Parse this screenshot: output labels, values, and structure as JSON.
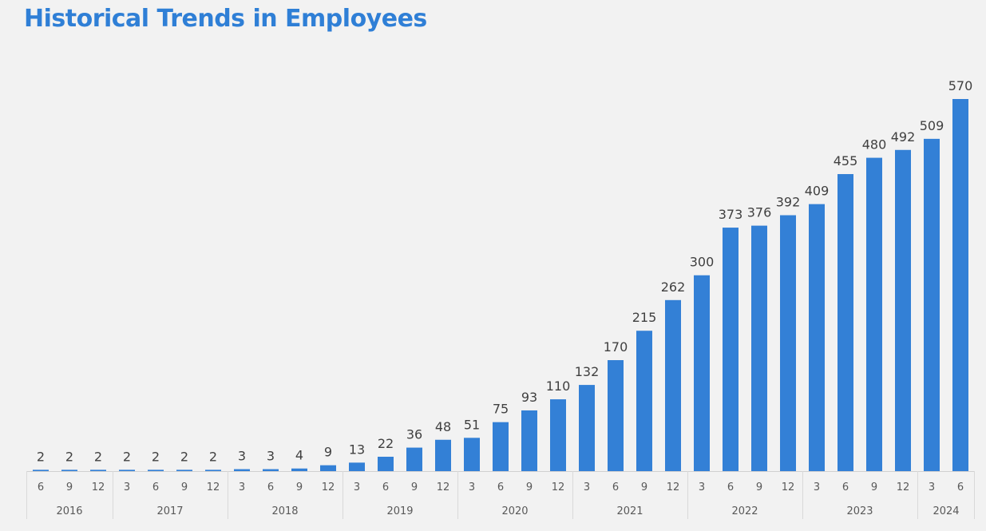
{
  "chart_data": {
    "type": "bar",
    "title": "Historical Trends in Employees",
    "xlabel": "",
    "ylabel": "",
    "ylim": [
      0,
      570
    ],
    "grid": false,
    "legend": "none",
    "bar_color": "#3380d6",
    "title_color": "#2f7fd6",
    "groups": [
      {
        "year": "2016",
        "months": [
          "6",
          "9",
          "12"
        ]
      },
      {
        "year": "2017",
        "months": [
          "3",
          "6",
          "9",
          "12"
        ]
      },
      {
        "year": "2018",
        "months": [
          "3",
          "6",
          "9",
          "12"
        ]
      },
      {
        "year": "2019",
        "months": [
          "3",
          "6",
          "9",
          "12"
        ]
      },
      {
        "year": "2020",
        "months": [
          "3",
          "6",
          "9",
          "12"
        ]
      },
      {
        "year": "2021",
        "months": [
          "3",
          "6",
          "9",
          "12"
        ]
      },
      {
        "year": "2022",
        "months": [
          "3",
          "6",
          "9",
          "12"
        ]
      },
      {
        "year": "2023",
        "months": [
          "3",
          "6",
          "9",
          "12"
        ]
      },
      {
        "year": "2024",
        "months": [
          "3",
          "6"
        ]
      }
    ],
    "values": [
      2,
      2,
      2,
      2,
      2,
      2,
      2,
      3,
      3,
      4,
      9,
      13,
      22,
      36,
      48,
      51,
      75,
      93,
      110,
      132,
      170,
      215,
      262,
      300,
      373,
      376,
      392,
      409,
      455,
      480,
      492,
      509,
      570
    ]
  }
}
